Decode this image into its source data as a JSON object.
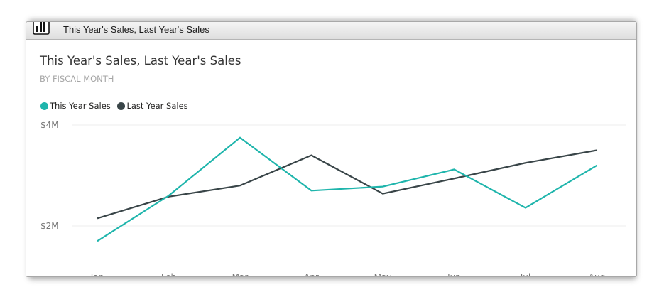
{
  "window": {
    "title": "This Year's Sales, Last Year's Sales",
    "icon": "power-bi-icon"
  },
  "colors": {
    "this_year": "#1fb5ac",
    "last_year": "#394548",
    "grid": "#ececec",
    "tick": "#777777"
  },
  "chart_data": {
    "type": "line",
    "title": "This Year's Sales, Last Year's Sales",
    "subtitle": "BY FISCAL MONTH",
    "categories": [
      "Jan",
      "Feb",
      "Mar",
      "Apr",
      "May",
      "Jun",
      "Jul",
      "Aug"
    ],
    "series": [
      {
        "name": "This Year Sales",
        "values": [
          1.7,
          2.6,
          3.75,
          2.7,
          2.78,
          3.12,
          2.36,
          3.2
        ],
        "color": "#1fb5ac"
      },
      {
        "name": "Last Year Sales",
        "values": [
          2.15,
          2.58,
          2.8,
          3.4,
          2.64,
          2.94,
          3.25,
          3.5
        ],
        "color": "#394548"
      }
    ],
    "y_ticks": [
      "$2M",
      "$4M"
    ],
    "y_tick_values": [
      2,
      4
    ],
    "ylim": [
      0.9,
      4
    ],
    "legend_position": "top-left",
    "grid": true,
    "xlabel": "",
    "ylabel": ""
  }
}
